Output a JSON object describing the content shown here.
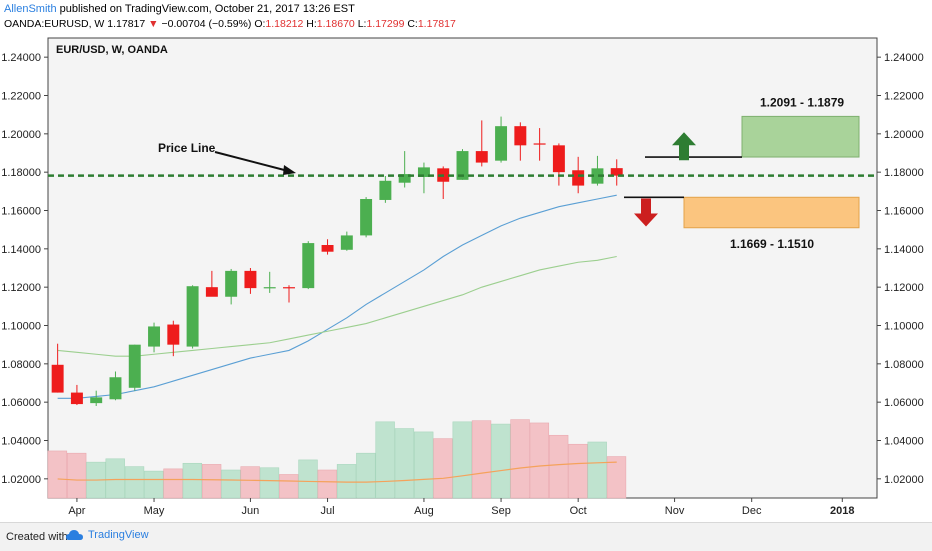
{
  "header": {
    "user": "AllenSmith",
    "published": "published on TradingView.com, October 21, 2017 13:26 EST",
    "symbol": "OANDA:EURUSD, W",
    "last": "1.17817",
    "change": "−0.00704 (−0.59%)",
    "o_label": "O:",
    "open": "1.18212",
    "h_label": "H:",
    "high": "1.18670",
    "l_label": "L:",
    "low": "1.17299",
    "c_label": "C:",
    "close": "1.17817"
  },
  "footer": {
    "created": "Created with",
    "brand": "TradingView"
  },
  "colors": {
    "up": "#4caf50",
    "down": "#ee1c1c",
    "vol_up": "#bfe3cf",
    "vol_down": "#f3c2c6",
    "price_line": "#2e7d32",
    "ma_fast": "#5a9fd4",
    "ma_slow": "#9ccf8f",
    "vol_ma": "#f5a25b",
    "target_up_zone": "#a9d39a",
    "target_down_zone": "#fbc57f",
    "arrow_up": "#2e7d32",
    "arrow_down": "#cc1f1f"
  },
  "chart_data": {
    "type": "candlestick",
    "title": "EUR/USD, W, OANDA",
    "ylim": [
      1.01,
      1.25
    ],
    "y_ticks": [
      "1.24000",
      "1.22000",
      "1.20000",
      "1.18000",
      "1.16000",
      "1.14000",
      "1.12000",
      "1.10000",
      "1.08000",
      "1.06000",
      "1.04000",
      "1.02000"
    ],
    "y_tick_values": [
      1.24,
      1.22,
      1.2,
      1.18,
      1.16,
      1.14,
      1.12,
      1.1,
      1.08,
      1.06,
      1.04,
      1.02
    ],
    "x_labels": [
      {
        "label": "Apr",
        "week": 1
      },
      {
        "label": "May",
        "week": 5
      },
      {
        "label": "Jun",
        "week": 10
      },
      {
        "label": "Jul",
        "week": 14
      },
      {
        "label": "Aug",
        "week": 19
      },
      {
        "label": "Sep",
        "week": 23
      },
      {
        "label": "Oct",
        "week": 27
      },
      {
        "label": "Nov",
        "week": 32
      },
      {
        "label": "Dec",
        "week": 36
      },
      {
        "label": "2018",
        "week": 40.7
      }
    ],
    "x_range": [
      -0.5,
      42.5
    ],
    "candles": [
      {
        "o": 1.0795,
        "h": 1.0905,
        "l": 1.065,
        "c": 1.065
      },
      {
        "o": 1.065,
        "h": 1.069,
        "l": 1.0585,
        "c": 1.059
      },
      {
        "o": 1.0595,
        "h": 1.066,
        "l": 1.058,
        "c": 1.0625
      },
      {
        "o": 1.0615,
        "h": 1.076,
        "l": 1.061,
        "c": 1.073
      },
      {
        "o": 1.0675,
        "h": 1.09,
        "l": 1.066,
        "c": 1.09
      },
      {
        "o": 1.089,
        "h": 1.1015,
        "l": 1.086,
        "c": 1.0995
      },
      {
        "o": 1.1005,
        "h": 1.1025,
        "l": 1.084,
        "c": 1.09
      },
      {
        "o": 1.089,
        "h": 1.121,
        "l": 1.088,
        "c": 1.1205
      },
      {
        "o": 1.12,
        "h": 1.1285,
        "l": 1.117,
        "c": 1.115
      },
      {
        "o": 1.115,
        "h": 1.1295,
        "l": 1.111,
        "c": 1.1285
      },
      {
        "o": 1.1285,
        "h": 1.13,
        "l": 1.1165,
        "c": 1.1195
      },
      {
        "o": 1.12,
        "h": 1.128,
        "l": 1.117,
        "c": 1.12
      },
      {
        "o": 1.12,
        "h": 1.121,
        "l": 1.112,
        "c": 1.1195
      },
      {
        "o": 1.1195,
        "h": 1.144,
        "l": 1.119,
        "c": 1.143
      },
      {
        "o": 1.142,
        "h": 1.145,
        "l": 1.137,
        "c": 1.1385
      },
      {
        "o": 1.1395,
        "h": 1.149,
        "l": 1.139,
        "c": 1.147
      },
      {
        "o": 1.147,
        "h": 1.167,
        "l": 1.146,
        "c": 1.166
      },
      {
        "o": 1.1655,
        "h": 1.178,
        "l": 1.164,
        "c": 1.1755
      },
      {
        "o": 1.1745,
        "h": 1.191,
        "l": 1.172,
        "c": 1.179
      },
      {
        "o": 1.1775,
        "h": 1.185,
        "l": 1.169,
        "c": 1.1825
      },
      {
        "o": 1.182,
        "h": 1.183,
        "l": 1.166,
        "c": 1.175
      },
      {
        "o": 1.176,
        "h": 1.192,
        "l": 1.176,
        "c": 1.191
      },
      {
        "o": 1.191,
        "h": 1.207,
        "l": 1.183,
        "c": 1.185
      },
      {
        "o": 1.186,
        "h": 1.209,
        "l": 1.185,
        "c": 1.204
      },
      {
        "o": 1.204,
        "h": 1.206,
        "l": 1.186,
        "c": 1.194
      },
      {
        "o": 1.195,
        "h": 1.203,
        "l": 1.186,
        "c": 1.1945
      },
      {
        "o": 1.194,
        "h": 1.195,
        "l": 1.173,
        "c": 1.18
      },
      {
        "o": 1.181,
        "h": 1.188,
        "l": 1.169,
        "c": 1.173
      },
      {
        "o": 1.174,
        "h": 1.1885,
        "l": 1.173,
        "c": 1.182
      },
      {
        "o": 1.1821,
        "h": 1.1867,
        "l": 1.173,
        "c": 1.1782
      }
    ],
    "volume_panel": {
      "ylim": [
        0,
        100
      ],
      "values": [
        42,
        40,
        32,
        35,
        28,
        24,
        26,
        31,
        30,
        25,
        28,
        27,
        21,
        34,
        25,
        30,
        40,
        68,
        62,
        59,
        53,
        68,
        69,
        66,
        70,
        67,
        56,
        48,
        50,
        37
      ],
      "ma": [
        17,
        16,
        16,
        16.5,
        16.5,
        16.5,
        16.5,
        16.5,
        16.3,
        16.1,
        15.8,
        15.5,
        15.2,
        14.8,
        14.5,
        14.2,
        14.2,
        14.8,
        15.6,
        16.6,
        17.6,
        19.8,
        22.2,
        24.5,
        26.8,
        28.6,
        29.8,
        30.8,
        31.4,
        32
      ]
    },
    "moving_averages": [
      {
        "key": "fast",
        "values": [
          1.062,
          1.062,
          1.063,
          1.064,
          1.066,
          1.068,
          1.071,
          1.074,
          1.077,
          1.08,
          1.083,
          1.085,
          1.087,
          1.092,
          1.098,
          1.104,
          1.111,
          1.117,
          1.123,
          1.129,
          1.136,
          1.142,
          1.147,
          1.152,
          1.156,
          1.159,
          1.162,
          1.164,
          1.166,
          1.168
        ]
      },
      {
        "key": "slow",
        "values": [
          1.087,
          1.086,
          1.085,
          1.084,
          1.084,
          1.085,
          1.086,
          1.087,
          1.088,
          1.089,
          1.09,
          1.091,
          1.093,
          1.095,
          1.097,
          1.099,
          1.101,
          1.104,
          1.107,
          1.11,
          1.113,
          1.116,
          1.12,
          1.123,
          1.126,
          1.129,
          1.131,
          1.133,
          1.134,
          1.136
        ]
      }
    ],
    "annotations": {
      "price_line_label": "Price Line",
      "price_line_value": 1.1782,
      "upper_target_label": "1.2091 - 1.1879",
      "upper_target": [
        1.2091,
        1.1879
      ],
      "lower_target_label": "1.1669  - 1.1510",
      "lower_target": [
        1.1669,
        1.151
      ]
    }
  }
}
